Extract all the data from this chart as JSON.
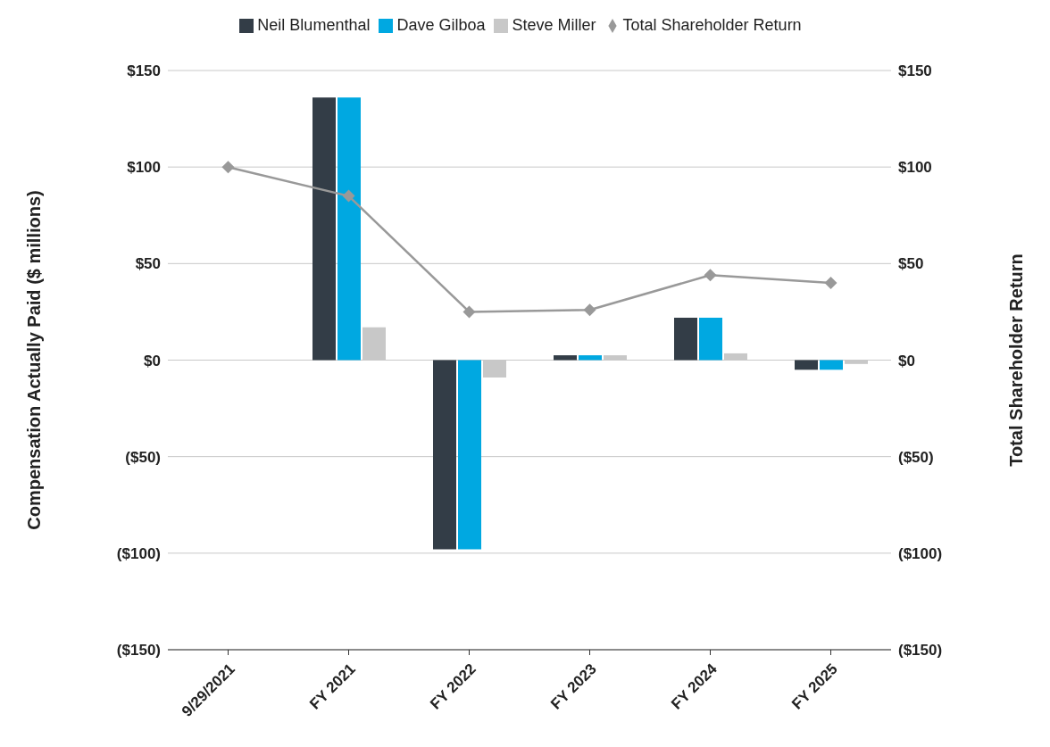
{
  "chart_data": {
    "type": "bar",
    "categories": [
      "9/29/2021",
      "FY 2021",
      "FY 2022",
      "FY 2023",
      "FY 2024",
      "FY 2025"
    ],
    "series": [
      {
        "name": "Neil Blumenthal",
        "color": "#333d47",
        "values": [
          0,
          136,
          -98,
          2.5,
          22,
          -5
        ]
      },
      {
        "name": "Dave Gilboa",
        "color": "#00a8e1",
        "values": [
          0,
          136,
          -98,
          2.5,
          22,
          -5
        ]
      },
      {
        "name": "Steve Miller",
        "color": "#c8c8c8",
        "values": [
          0,
          17,
          -9,
          2.5,
          3.5,
          -2
        ]
      },
      {
        "name": "Total Shareholder Return",
        "type": "line",
        "axis": "y2",
        "color": "#999999",
        "values": [
          100,
          85,
          25,
          26,
          44,
          40
        ]
      }
    ],
    "ylabel": "Compensation Actually Paid ($ millions)",
    "y2label": "Total Shareholder Return",
    "ylim": [
      -150,
      150
    ],
    "yticks": [
      {
        "value": -150,
        "label": "($150)"
      },
      {
        "value": -100,
        "label": "($100)"
      },
      {
        "value": -50,
        "label": "($50)"
      },
      {
        "value": 0,
        "label": "$0"
      },
      {
        "value": 50,
        "label": "$50"
      },
      {
        "value": 100,
        "label": "$100"
      },
      {
        "value": 150,
        "label": "$150"
      }
    ],
    "y2lim": [
      -150,
      150
    ],
    "y2ticks": [
      {
        "value": -150,
        "label": "($150)"
      },
      {
        "value": -100,
        "label": "($100)"
      },
      {
        "value": -50,
        "label": "($50)"
      },
      {
        "value": 0,
        "label": "$0"
      },
      {
        "value": 50,
        "label": "$50"
      },
      {
        "value": 100,
        "label": "$100"
      },
      {
        "value": 150,
        "label": "$150"
      }
    ],
    "grid": "y",
    "legend": "top",
    "marker": "diamond"
  }
}
